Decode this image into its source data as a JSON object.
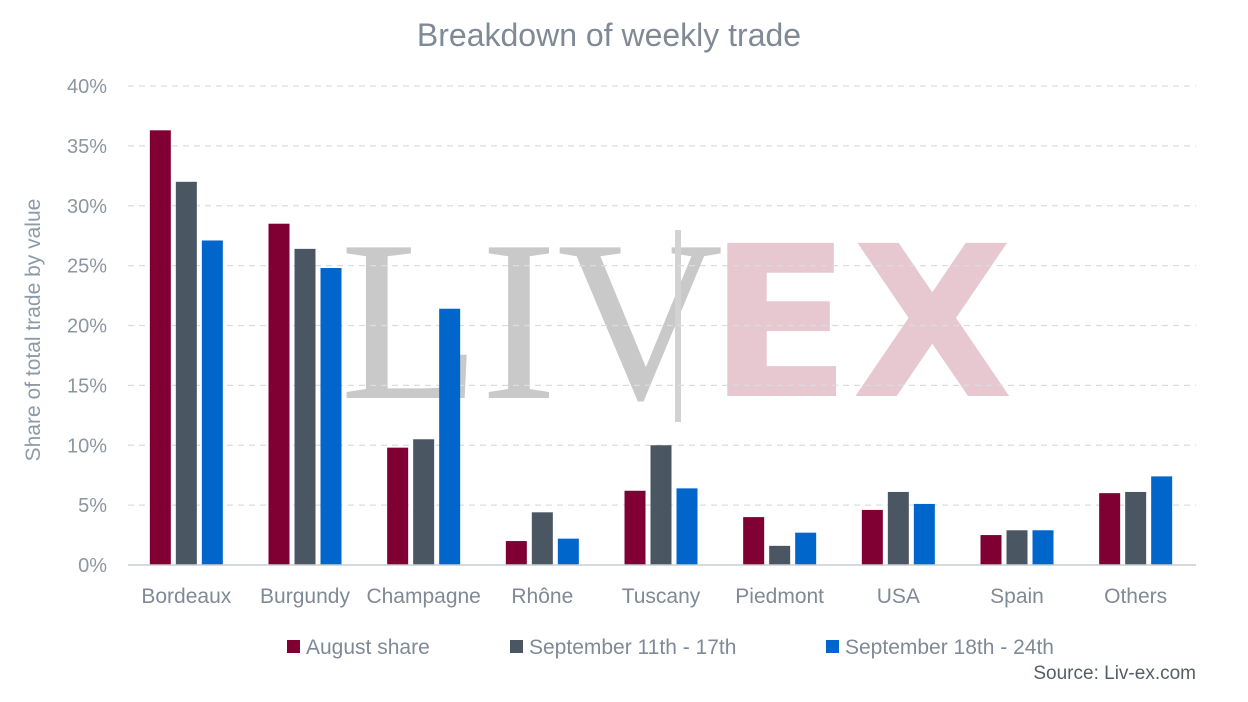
{
  "chart_data": {
    "type": "bar",
    "title": "Breakdown of weekly trade",
    "ylabel": "Share of total trade by value",
    "xlabel": "",
    "ylim": [
      0,
      40
    ],
    "yticks": [
      0,
      5,
      10,
      15,
      20,
      25,
      30,
      35,
      40
    ],
    "ytick_labels": [
      "0%",
      "5%",
      "10%",
      "15%",
      "20%",
      "25%",
      "30%",
      "35%",
      "40%"
    ],
    "grid": true,
    "legend_position": "bottom",
    "categories": [
      "Bordeaux",
      "Burgundy",
      "Champagne",
      "Rhône",
      "Tuscany",
      "Piedmont",
      "USA",
      "Spain",
      "Others"
    ],
    "series": [
      {
        "name": "August share",
        "color": "#800033",
        "values": [
          36.3,
          28.5,
          9.8,
          2.0,
          6.2,
          4.0,
          4.6,
          2.5,
          6.0
        ]
      },
      {
        "name": "September 11th - 17th",
        "color": "#4a5661",
        "values": [
          32.0,
          26.4,
          10.5,
          4.4,
          10.0,
          1.6,
          6.1,
          2.9,
          6.1
        ]
      },
      {
        "name": "September 18th - 24th",
        "color": "#0066cc",
        "values": [
          27.1,
          24.8,
          21.4,
          2.2,
          6.4,
          2.7,
          5.1,
          2.9,
          7.4
        ]
      }
    ]
  },
  "watermark": {
    "left": "LIV",
    "right": "EX"
  },
  "source": "Source: Liv-ex.com"
}
